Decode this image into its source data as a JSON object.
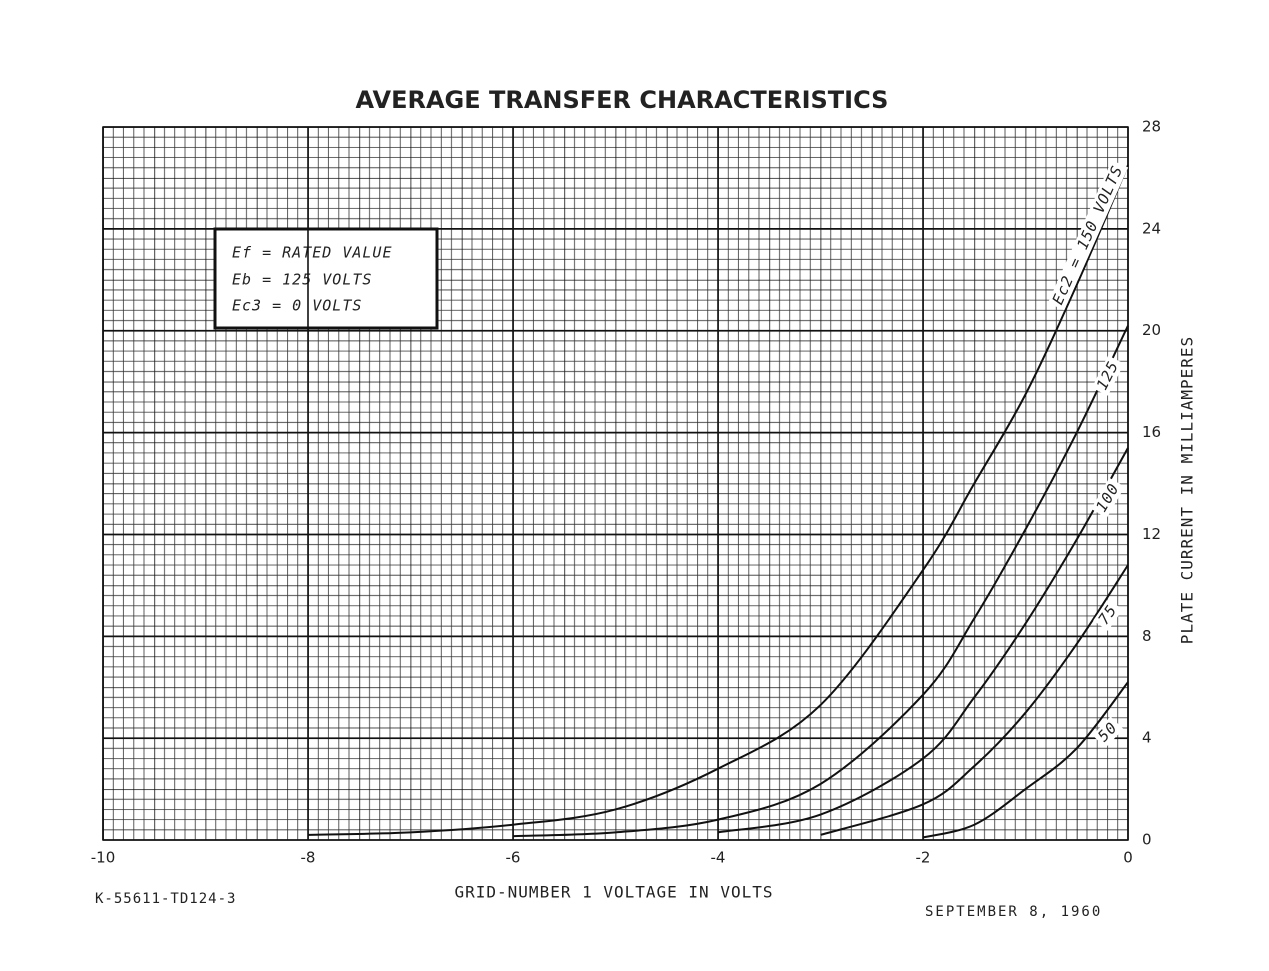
{
  "chart_data": {
    "type": "line",
    "title": "AVERAGE TRANSFER CHARACTERISTICS",
    "x_label": "GRID-NUMBER 1 VOLTAGE IN VOLTS",
    "y_label": "PLATE CURRENT IN MILLIAMPERES",
    "annotations": [
      "Ef = RATED VALUE",
      "Eb = 125 VOLTS",
      "Ec3 = 0 VOLTS"
    ],
    "footer_left": "K-55611-TD124-3",
    "footer_right": "SEPTEMBER 8, 1960",
    "x": [
      -8,
      -7,
      -6,
      -5,
      -4,
      -3,
      -2,
      -1.5,
      -1,
      -0.5,
      0
    ],
    "series": [
      {
        "name": "Ec2 = 150 VOLTS",
        "color": "#111111",
        "values": [
          0.2,
          0.3,
          0.6,
          1.2,
          2.8,
          5.3,
          10.6,
          14,
          17.5,
          21.8,
          26.5
        ]
      },
      {
        "name": "125",
        "color": "#111111",
        "values": [
          null,
          null,
          0.15,
          0.3,
          0.8,
          2.2,
          5.7,
          8.7,
          12.2,
          16,
          20.2
        ]
      },
      {
        "name": "100",
        "color": "#111111",
        "values": [
          null,
          null,
          null,
          null,
          0.3,
          1.0,
          3.2,
          5.6,
          8.5,
          11.8,
          15.4
        ]
      },
      {
        "name": "75",
        "color": "#111111",
        "values": [
          null,
          null,
          null,
          null,
          null,
          0.2,
          1.4,
          2.9,
          5.0,
          7.7,
          10.8
        ]
      },
      {
        "name": "50",
        "color": "#111111",
        "values": [
          null,
          null,
          null,
          null,
          null,
          null,
          0.1,
          0.6,
          2.0,
          3.6,
          6.2
        ]
      }
    ],
    "xlim": [
      -10,
      0
    ],
    "xticks": [
      -10,
      -8,
      -6,
      -4,
      -2,
      0
    ],
    "ylim": [
      0,
      28
    ],
    "yticks": [
      0,
      4,
      8,
      12,
      16,
      20,
      24,
      28
    ],
    "grid": true
  }
}
